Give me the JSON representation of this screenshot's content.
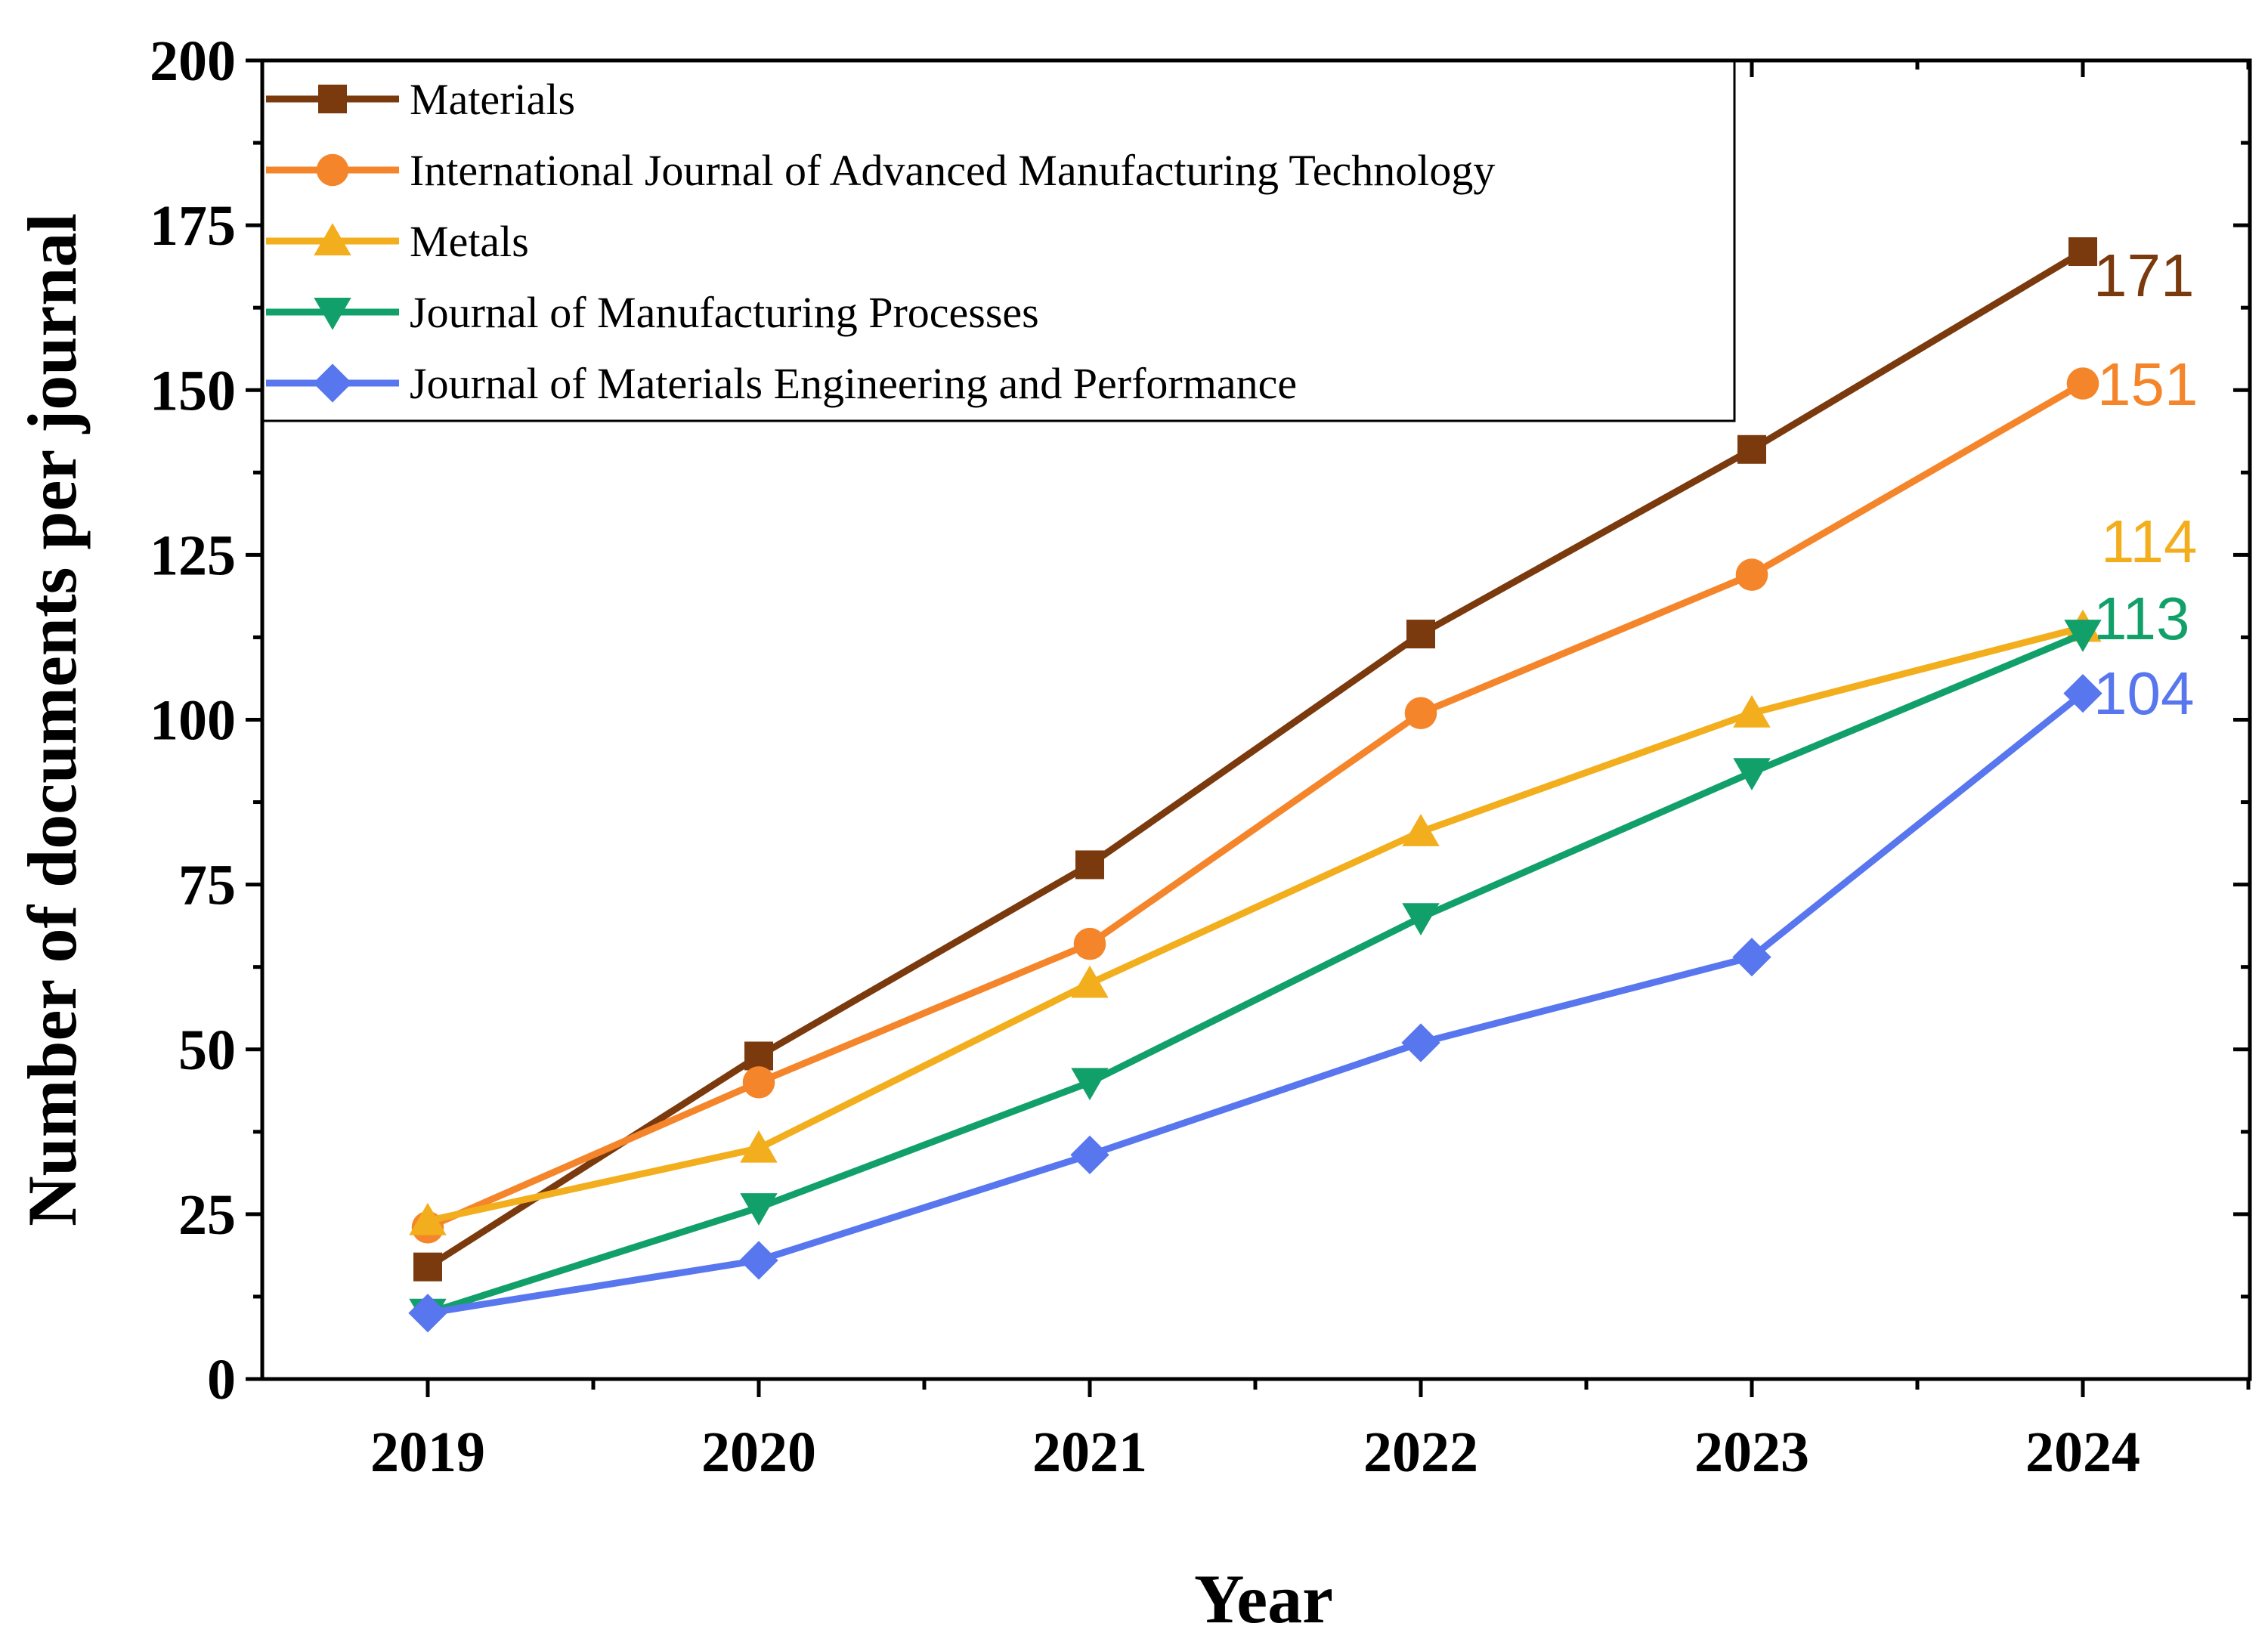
{
  "chart_data": {
    "type": "line",
    "title": "",
    "xlabel": "Year",
    "ylabel": "Number of documents per journal",
    "categories": [
      "2019",
      "2020",
      "2021",
      "2022",
      "2023",
      "2024"
    ],
    "ylim": [
      0,
      200
    ],
    "yticks": [
      0,
      25,
      50,
      75,
      100,
      125,
      150,
      175,
      200
    ],
    "ytick_labels": [
      "0",
      "25",
      "50",
      "75",
      "100",
      "125",
      "150",
      "175",
      "200"
    ],
    "grid": false,
    "legend_position": "top-left",
    "series": [
      {
        "name": "Materials",
        "marker": "square",
        "color": "#7B3A0E",
        "values": [
          17,
          49,
          78,
          113,
          141,
          171
        ],
        "end_label": "171"
      },
      {
        "name": "International Journal of Advanced Manufacturing Technology",
        "marker": "circle",
        "color": "#F5852A",
        "values": [
          23,
          45,
          66,
          101,
          122,
          151
        ],
        "end_label": "151"
      },
      {
        "name": "Metals",
        "marker": "triangle-up",
        "color": "#F2AE1C",
        "values": [
          24,
          35,
          60,
          83,
          101,
          114
        ],
        "end_label": "114"
      },
      {
        "name": "Journal of Manufacturing Processes",
        "marker": "triangle-down",
        "color": "#12A06A",
        "values": [
          10,
          26,
          45,
          70,
          92,
          113
        ],
        "end_label": "113"
      },
      {
        "name": "Journal of Materials Engineering and Performance",
        "marker": "diamond",
        "color": "#5876EE",
        "values": [
          10,
          18,
          34,
          51,
          64,
          104
        ],
        "end_label": "104"
      }
    ]
  }
}
